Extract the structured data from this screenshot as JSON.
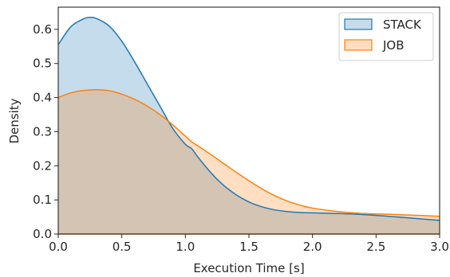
{
  "chart_data": {
    "type": "area",
    "xlabel": "Execution Time [s]",
    "ylabel": "Density",
    "xlim": [
      0.0,
      3.0
    ],
    "ylim": [
      0.0,
      0.665
    ],
    "xticks": [
      0.0,
      0.5,
      1.0,
      1.5,
      2.0,
      2.5,
      3.0
    ],
    "xtick_labels": [
      "0.0",
      "0.5",
      "1.0",
      "1.5",
      "2.0",
      "2.5",
      "3.0"
    ],
    "yticks": [
      0.0,
      0.1,
      0.2,
      0.3,
      0.4,
      0.5,
      0.6
    ],
    "ytick_labels": [
      "0.0",
      "0.1",
      "0.2",
      "0.3",
      "0.4",
      "0.5",
      "0.6"
    ],
    "legend": {
      "placement": "top-right"
    },
    "grid": false,
    "series": [
      {
        "name": "STACK",
        "color": "#1f77b4",
        "fill_color": "#1f77b4",
        "x": [
          0.0,
          0.1,
          0.2,
          0.25,
          0.3,
          0.4,
          0.5,
          0.6,
          0.7,
          0.8,
          0.9,
          1.0,
          1.05,
          1.1,
          1.2,
          1.3,
          1.4,
          1.5,
          1.6,
          1.7,
          1.8,
          1.9,
          2.0,
          2.2,
          2.4,
          2.6,
          2.8,
          3.0
        ],
        "y": [
          0.555,
          0.608,
          0.631,
          0.635,
          0.632,
          0.61,
          0.565,
          0.505,
          0.44,
          0.375,
          0.31,
          0.263,
          0.25,
          0.225,
          0.18,
          0.143,
          0.115,
          0.094,
          0.08,
          0.071,
          0.066,
          0.063,
          0.062,
          0.06,
          0.057,
          0.052,
          0.046,
          0.04
        ]
      },
      {
        "name": "JOB",
        "color": "#ff7f0e",
        "fill_color": "#ff7f0e",
        "x": [
          0.0,
          0.1,
          0.2,
          0.3,
          0.4,
          0.5,
          0.6,
          0.7,
          0.8,
          0.9,
          1.0,
          1.05,
          1.1,
          1.2,
          1.3,
          1.4,
          1.5,
          1.6,
          1.7,
          1.8,
          1.9,
          2.0,
          2.2,
          2.4,
          2.6,
          2.8,
          3.0
        ],
        "y": [
          0.4,
          0.414,
          0.421,
          0.423,
          0.42,
          0.41,
          0.395,
          0.375,
          0.35,
          0.32,
          0.287,
          0.27,
          0.258,
          0.233,
          0.207,
          0.181,
          0.156,
          0.133,
          0.113,
          0.097,
          0.085,
          0.076,
          0.066,
          0.06,
          0.058,
          0.055,
          0.052
        ]
      }
    ]
  }
}
